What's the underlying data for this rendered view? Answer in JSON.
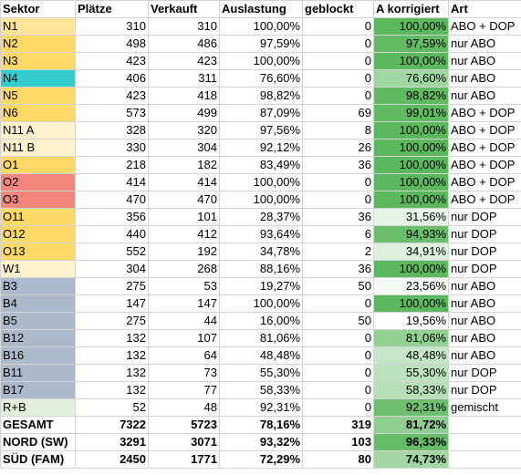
{
  "headers": [
    "Sektor",
    "Plätze",
    "Verkauft",
    "Auslastung",
    "geblockt",
    "A korrigiert",
    "Art"
  ],
  "rows": [
    {
      "sektor": "N1",
      "plaetze": "310",
      "verkauft": "310",
      "auslastung": "100,00%",
      "geblockt": "0",
      "a_korrigiert": "100,00%",
      "art": "ABO + DOP",
      "sektor_color": "#ffe599",
      "ak_color": "#5cb85c"
    },
    {
      "sektor": "N2",
      "plaetze": "498",
      "verkauft": "486",
      "auslastung": "97,59%",
      "geblockt": "0",
      "a_korrigiert": "97,59%",
      "art": "nur ABO",
      "sektor_color": "#ffd966",
      "ak_color": "#62bb62"
    },
    {
      "sektor": "N3",
      "plaetze": "423",
      "verkauft": "423",
      "auslastung": "100,00%",
      "geblockt": "0",
      "a_korrigiert": "100,00%",
      "art": "nur ABO",
      "sektor_color": "#ffd966",
      "ak_color": "#5cb85c"
    },
    {
      "sektor": "N4",
      "plaetze": "406",
      "verkauft": "311",
      "auslastung": "76,60%",
      "geblockt": "0",
      "a_korrigiert": "76,60%",
      "art": "nur ABO",
      "sektor_color": "#33cccc",
      "ak_color": "#9fd6a1"
    },
    {
      "sektor": "N5",
      "plaetze": "423",
      "verkauft": "418",
      "auslastung": "98,82%",
      "geblockt": "0",
      "a_korrigiert": "98,82%",
      "art": "nur ABO",
      "sektor_color": "#ffd966",
      "ak_color": "#60ba60"
    },
    {
      "sektor": "N6",
      "plaetze": "573",
      "verkauft": "499",
      "auslastung": "87,09%",
      "geblockt": "69",
      "a_korrigiert": "99,01%",
      "art": "ABO + DOP",
      "sektor_color": "#ffd966",
      "ak_color": "#60ba60"
    },
    {
      "sektor": "N11 A",
      "plaetze": "328",
      "verkauft": "320",
      "auslastung": "97,56%",
      "geblockt": "8",
      "a_korrigiert": "100,00%",
      "art": "ABO + DOP",
      "sektor_color": "#fff2cc",
      "ak_color": "#5cb85c"
    },
    {
      "sektor": "N11 B",
      "plaetze": "330",
      "verkauft": "304",
      "auslastung": "92,12%",
      "geblockt": "26",
      "a_korrigiert": "100,00%",
      "art": "ABO + DOP",
      "sektor_color": "#fff2cc",
      "ak_color": "#5cb85c"
    },
    {
      "sektor": "O1",
      "plaetze": "218",
      "verkauft": "182",
      "auslastung": "83,49%",
      "geblockt": "36",
      "a_korrigiert": "100,00%",
      "art": "ABO + DOP",
      "sektor_color": "#ffd966",
      "ak_color": "#5cb85c"
    },
    {
      "sektor": "O2",
      "plaetze": "414",
      "verkauft": "414",
      "auslastung": "100,00%",
      "geblockt": "0",
      "a_korrigiert": "100,00%",
      "art": "ABO + DOP",
      "sektor_color": "#f4867c",
      "ak_color": "#5cb85c"
    },
    {
      "sektor": "O3",
      "plaetze": "470",
      "verkauft": "470",
      "auslastung": "100,00%",
      "geblockt": "0",
      "a_korrigiert": "100,00%",
      "art": "ABO + DOP",
      "sektor_color": "#f4867c",
      "ak_color": "#5cb85c"
    },
    {
      "sektor": "O11",
      "plaetze": "356",
      "verkauft": "101",
      "auslastung": "28,37%",
      "geblockt": "36",
      "a_korrigiert": "31,56%",
      "art": "nur DOP",
      "sektor_color": "#ffd966",
      "ak_color": "#e5f4e6"
    },
    {
      "sektor": "O12",
      "plaetze": "440",
      "verkauft": "412",
      "auslastung": "93,64%",
      "geblockt": "6",
      "a_korrigiert": "94,93%",
      "art": "nur DOP",
      "sektor_color": "#ffd966",
      "ak_color": "#6abe6b"
    },
    {
      "sektor": "O13",
      "plaetze": "552",
      "verkauft": "192",
      "auslastung": "34,78%",
      "geblockt": "2",
      "a_korrigiert": "34,91%",
      "art": "nur DOP",
      "sektor_color": "#ffd966",
      "ak_color": "#dcf0dd"
    },
    {
      "sektor": "W1",
      "plaetze": "304",
      "verkauft": "268",
      "auslastung": "88,16%",
      "geblockt": "36",
      "a_korrigiert": "100,00%",
      "art": "nur DOP",
      "sektor_color": "#fff2cc",
      "ak_color": "#5cb85c"
    },
    {
      "sektor": "B3",
      "plaetze": "275",
      "verkauft": "53",
      "auslastung": "19,27%",
      "geblockt": "50",
      "a_korrigiert": "23,56%",
      "art": "nur ABO",
      "sektor_color": "#acb9ca",
      "ak_color": "#f4faf4"
    },
    {
      "sektor": "B4",
      "plaetze": "147",
      "verkauft": "147",
      "auslastung": "100,00%",
      "geblockt": "0",
      "a_korrigiert": "100,00%",
      "art": "nur ABO",
      "sektor_color": "#acb9ca",
      "ak_color": "#5cb85c"
    },
    {
      "sektor": "B5",
      "plaetze": "275",
      "verkauft": "44",
      "auslastung": "16,00%",
      "geblockt": "50",
      "a_korrigiert": "19,56%",
      "art": "nur ABO",
      "sektor_color": "#acb9ca",
      "ak_color": "#fafdfa"
    },
    {
      "sektor": "B12",
      "plaetze": "132",
      "verkauft": "107",
      "auslastung": "81,06%",
      "geblockt": "0",
      "a_korrigiert": "81,06%",
      "art": "nur ABO",
      "sektor_color": "#acb9ca",
      "ak_color": "#92d094"
    },
    {
      "sektor": "B16",
      "plaetze": "132",
      "verkauft": "64",
      "auslastung": "48,48%",
      "geblockt": "0",
      "a_korrigiert": "48,48%",
      "art": "nur ABO",
      "sektor_color": "#acb9ca",
      "ak_color": "#c6e7c7"
    },
    {
      "sektor": "B11",
      "plaetze": "132",
      "verkauft": "73",
      "auslastung": "55,30%",
      "geblockt": "0",
      "a_korrigiert": "55,30%",
      "art": "nur DOP",
      "sektor_color": "#acb9ca",
      "ak_color": "#bce2bd"
    },
    {
      "sektor": "B17",
      "plaetze": "132",
      "verkauft": "77",
      "auslastung": "58,33%",
      "geblockt": "0",
      "a_korrigiert": "58,33%",
      "art": "nur DOP",
      "sektor_color": "#acb9ca",
      "ak_color": "#b7e0b8"
    },
    {
      "sektor": "R+B",
      "plaetze": "52",
      "verkauft": "48",
      "auslastung": "92,31%",
      "geblockt": "0",
      "a_korrigiert": "92,31%",
      "art": "gemischt",
      "sektor_color": "#e2efda",
      "ak_color": "#6ebf6f"
    }
  ],
  "totals": [
    {
      "sektor": "GESAMT",
      "plaetze": "7322",
      "verkauft": "5723",
      "auslastung": "78,16%",
      "geblockt": "319",
      "a_korrigiert": "81,72%",
      "art": "",
      "ak_color": "#8fce91"
    },
    {
      "sektor": "NORD (SW)",
      "plaetze": "3291",
      "verkauft": "3071",
      "auslastung": "93,32%",
      "geblockt": "103",
      "a_korrigiert": "96,33%",
      "art": "",
      "ak_color": "#65bc66"
    },
    {
      "sektor": "SÜD (FAM)",
      "plaetze": "2450",
      "verkauft": "1771",
      "auslastung": "72,29%",
      "geblockt": "80",
      "a_korrigiert": "74,73%",
      "art": "",
      "ak_color": "#a2d7a4"
    }
  ]
}
